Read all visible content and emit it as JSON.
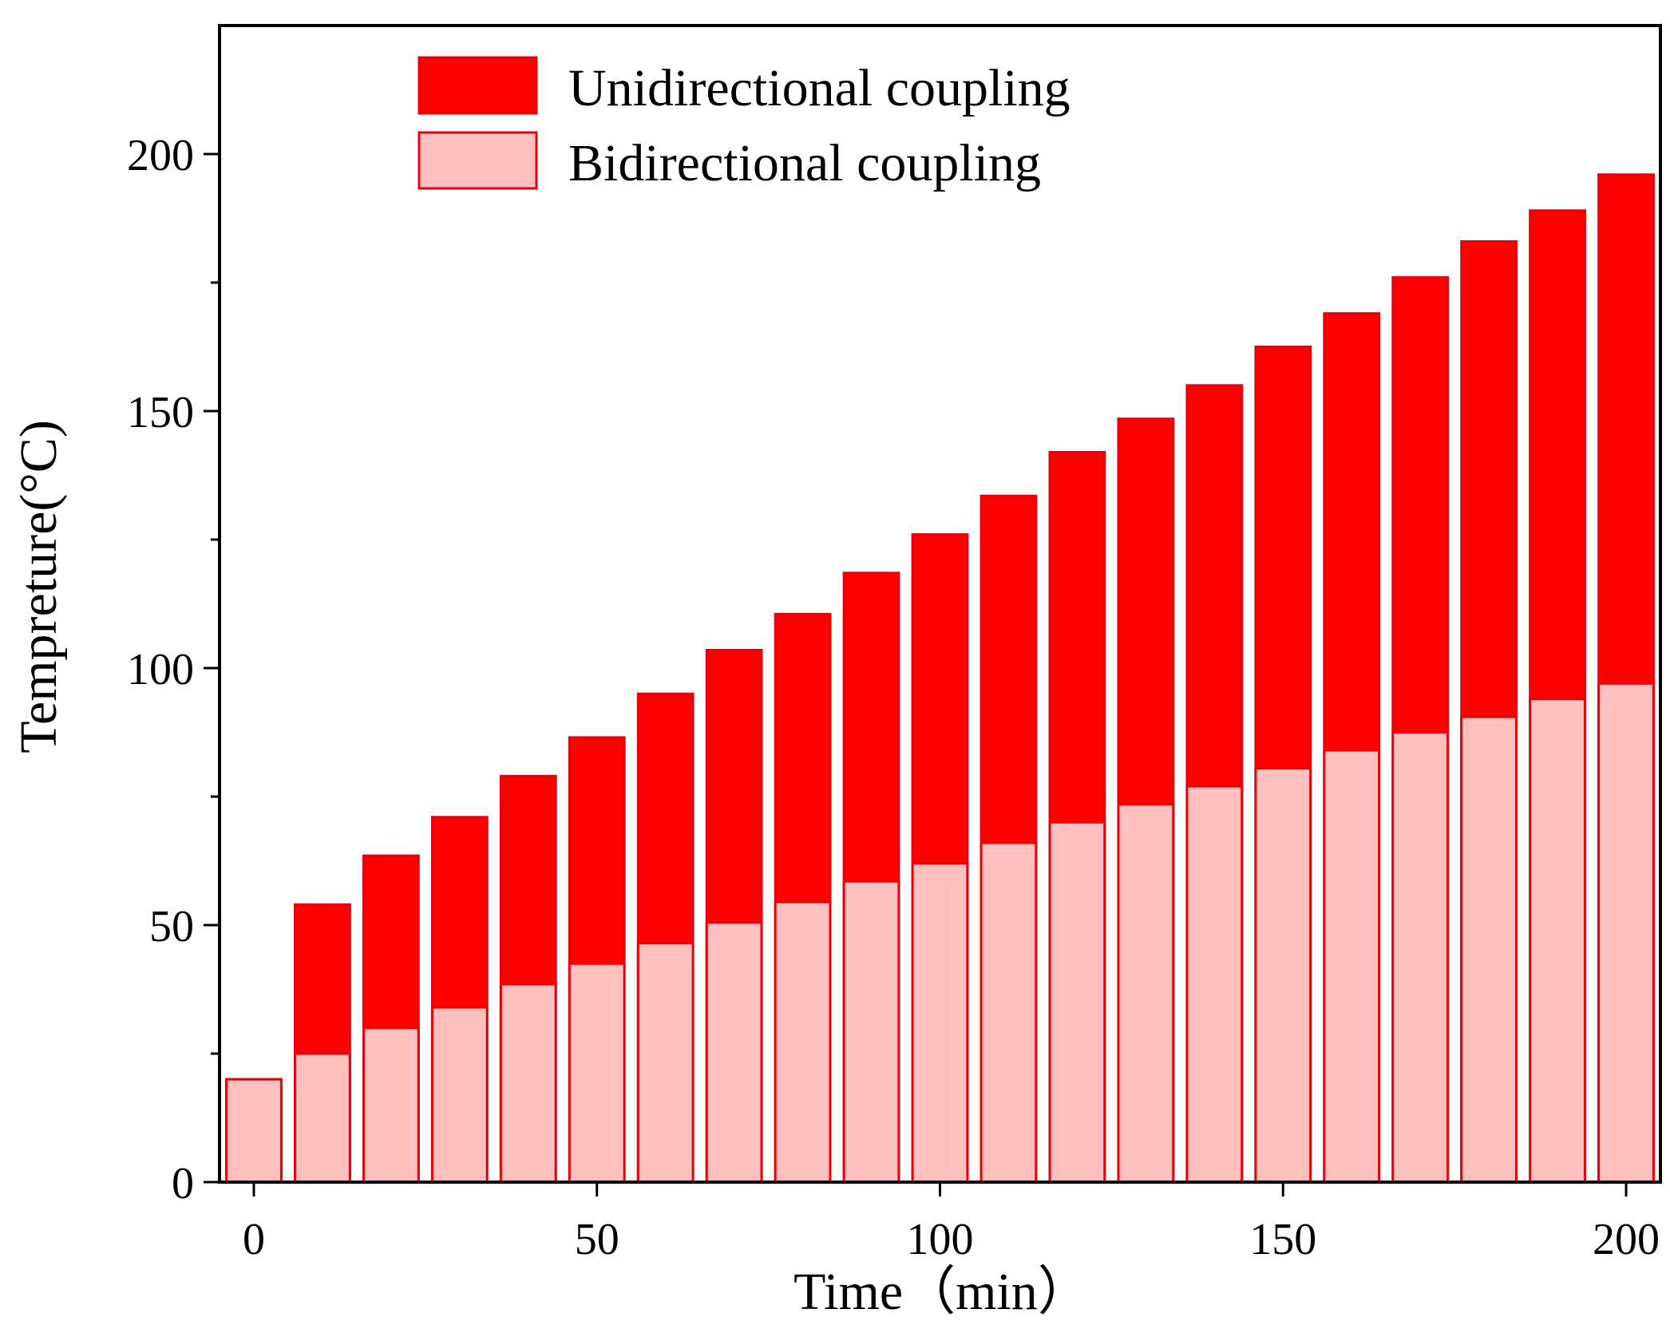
{
  "chart_data": {
    "type": "bar",
    "stacking": "overlay",
    "xlabel": "Time（min）",
    "ylabel": "Tempreture(°C)",
    "xlim": [
      -5,
      205
    ],
    "ylim": [
      0,
      225
    ],
    "xticks": [
      0,
      50,
      100,
      150,
      200
    ],
    "xtick_labels": [
      "0",
      "50",
      "100",
      "150",
      "200"
    ],
    "yticks": [
      0,
      50,
      100,
      150,
      200
    ],
    "ytick_labels": [
      "0",
      "50",
      "100",
      "150",
      "200"
    ],
    "y_minor_ticks": [
      25,
      75,
      125,
      175
    ],
    "bar_width": 8,
    "x": [
      0,
      10,
      20,
      30,
      40,
      50,
      60,
      70,
      80,
      90,
      100,
      110,
      120,
      130,
      140,
      150,
      160,
      170,
      180,
      190,
      200
    ],
    "series": [
      {
        "name": "Unidirectional coupling",
        "color": "#ff0000",
        "edge_color": "#e8000b",
        "values": [
          20,
          54,
          63.5,
          71,
          79,
          86.5,
          95,
          103.5,
          110.5,
          118.5,
          126,
          133.5,
          142,
          148.5,
          155,
          162.5,
          169,
          176,
          183,
          189,
          196
        ]
      },
      {
        "name": "Bidirectional coupling",
        "color": "#ffc0c0",
        "edge_color": "#e8000b",
        "values": [
          20,
          25,
          30,
          34,
          38.5,
          42.5,
          46.5,
          50.5,
          54.5,
          58.5,
          62,
          66,
          70,
          73.5,
          77,
          80.5,
          84,
          87.5,
          90.5,
          94,
          97
        ]
      }
    ],
    "legend": {
      "position": "top-left",
      "entries": [
        "Unidirectional coupling",
        "Bidirectional coupling"
      ]
    }
  }
}
